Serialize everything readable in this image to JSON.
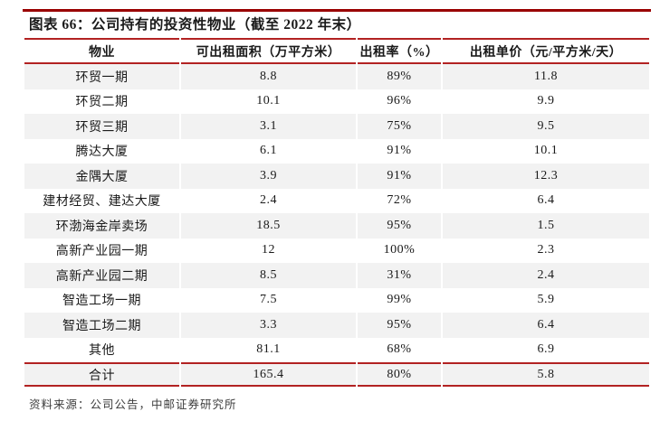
{
  "figure": {
    "title": "图表 66：公司持有的投资性物业（截至 2022 年末）",
    "source": "资料来源：公司公告，中邮证券研究所"
  },
  "table": {
    "columns": [
      "物业",
      "可出租面积（万平方米）",
      "出租率（%）",
      "出租单价（元/平方米/天）"
    ],
    "rows": [
      [
        "环贸一期",
        "8.8",
        "89%",
        "11.8"
      ],
      [
        "环贸二期",
        "10.1",
        "96%",
        "9.9"
      ],
      [
        "环贸三期",
        "3.1",
        "75%",
        "9.5"
      ],
      [
        "腾达大厦",
        "6.1",
        "91%",
        "10.1"
      ],
      [
        "金隅大厦",
        "3.9",
        "91%",
        "12.3"
      ],
      [
        "建材经贸、建达大厦",
        "2.4",
        "72%",
        "6.4"
      ],
      [
        "环渤海金岸卖场",
        "18.5",
        "95%",
        "1.5"
      ],
      [
        "高新产业园一期",
        "12",
        "100%",
        "2.3"
      ],
      [
        "高新产业园二期",
        "8.5",
        "31%",
        "2.4"
      ],
      [
        "智造工场一期",
        "7.5",
        "99%",
        "5.9"
      ],
      [
        "智造工场二期",
        "3.3",
        "95%",
        "6.4"
      ],
      [
        "其他",
        "81.1",
        "68%",
        "6.9"
      ]
    ],
    "total_row": [
      "合计",
      "165.4",
      "80%",
      "5.8"
    ]
  },
  "colors": {
    "top_rule": "#990000",
    "table_rule": "#b22222",
    "stripe": "#f2f2f2",
    "text": "#1a1a1a",
    "source_text": "#3d3d3d"
  }
}
